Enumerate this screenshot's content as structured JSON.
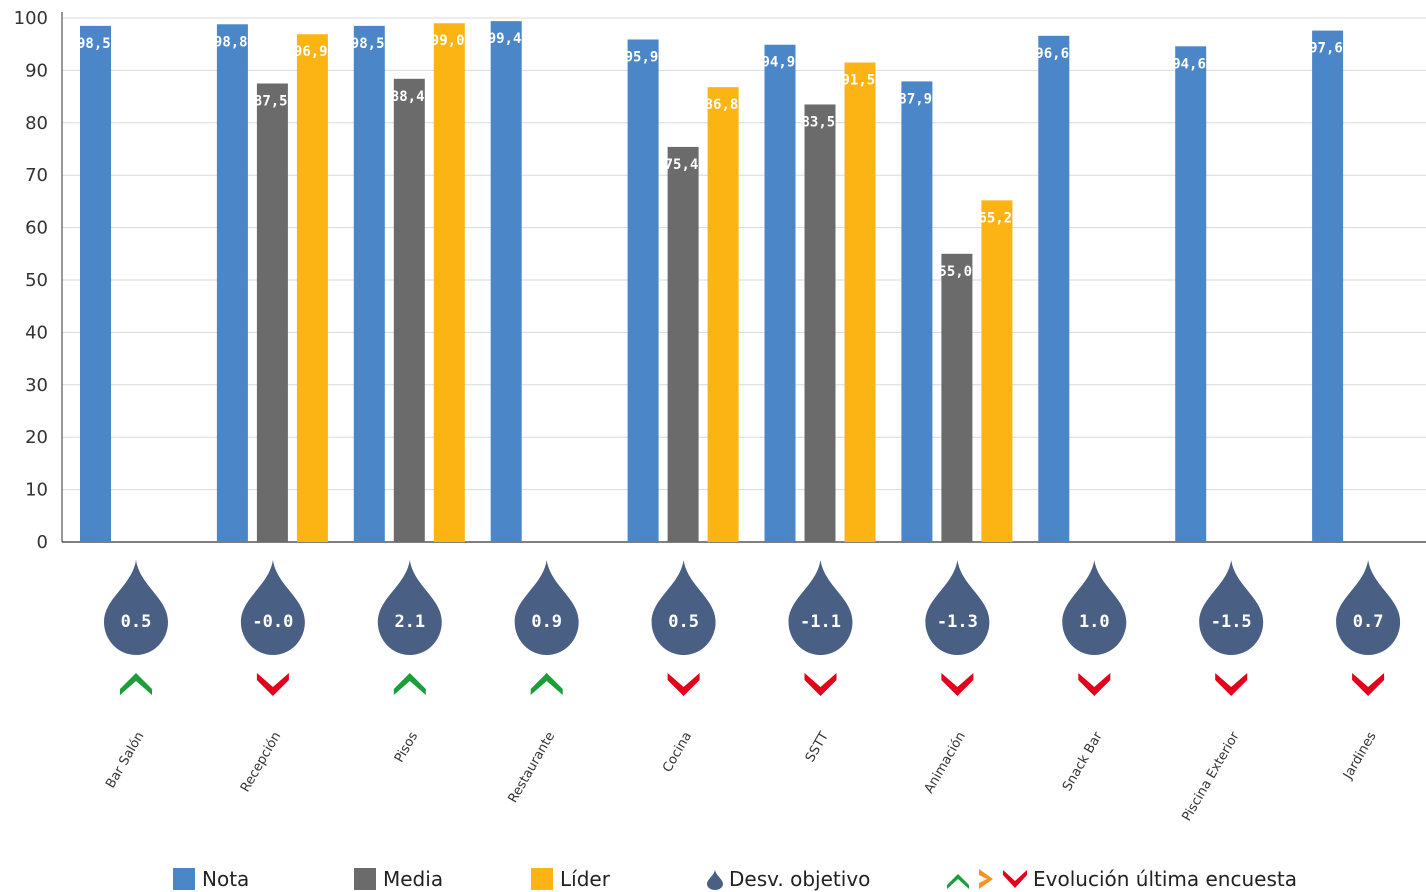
{
  "chart_data": {
    "type": "bar",
    "categories": [
      "Bar Salón",
      "Recepción",
      "Pisos",
      "Restaurante",
      "Cocina",
      "SSTT",
      "Animación",
      "Snack Bar",
      "Piscina Exterior",
      "Jardines"
    ],
    "series": [
      {
        "name": "Nota",
        "color": "#4a86c8",
        "values": [
          98.5,
          98.8,
          98.5,
          99.4,
          95.9,
          94.9,
          87.9,
          96.6,
          94.6,
          97.6
        ],
        "labels": [
          "98,5",
          "98,8",
          "98,5",
          "99,4",
          "95,9",
          "94,9",
          "87,9",
          "96,6",
          "94,6",
          "97,6"
        ]
      },
      {
        "name": "Media",
        "color": "#6b6b6b",
        "values": [
          null,
          87.5,
          88.4,
          null,
          75.4,
          83.5,
          55.0,
          null,
          null,
          null
        ],
        "labels": [
          "",
          "87,5",
          "88,4",
          "",
          "75,4",
          "83,5",
          "55,0",
          "",
          "",
          ""
        ]
      },
      {
        "name": "Líder",
        "color": "#fbb413",
        "values": [
          null,
          96.9,
          99.0,
          null,
          86.8,
          91.5,
          65.2,
          null,
          null,
          null
        ],
        "labels": [
          "",
          "96,9",
          "99,0",
          "",
          "86,8",
          "91,5",
          "65,2",
          "",
          "",
          ""
        ]
      }
    ],
    "desviacion": [
      "0.5",
      "-0.0",
      "2.1",
      "0.9",
      "0.5",
      "-1.1",
      "-1.3",
      "1.0",
      "-1.5",
      "0.7"
    ],
    "evolucion": [
      "up",
      "down",
      "up",
      "up",
      "down",
      "down",
      "down",
      "down",
      "down",
      "down"
    ],
    "ylim": [
      0,
      100
    ],
    "yticks": [
      "0",
      "10",
      "20",
      "30",
      "40",
      "50",
      "60",
      "70",
      "80",
      "90",
      "100"
    ],
    "grid": true,
    "legend_position": "bottom",
    "drop_color": "#4a5f84",
    "up_color": "#1a9e3a",
    "down_color": "#e3001b",
    "side_color": "#f7941d"
  },
  "legend": {
    "nota": "Nota",
    "media": "Media",
    "lider": "Líder",
    "desviacion": "Desv. objetivo",
    "evolucion": "Evolución última encuesta"
  }
}
